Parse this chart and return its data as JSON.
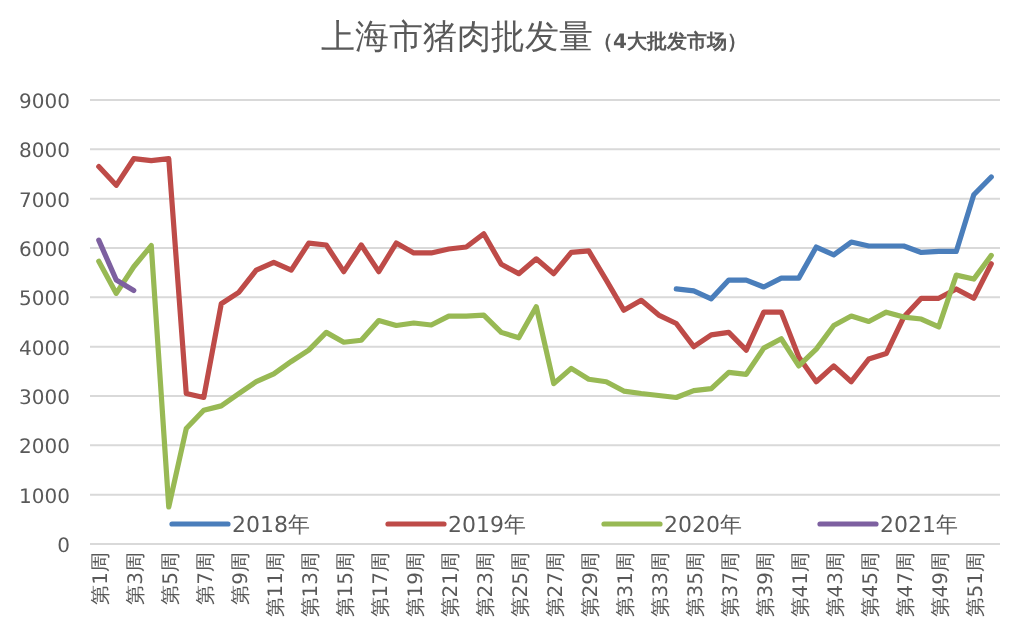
{
  "chart_data": {
    "type": "line",
    "title": "上海市猪肉批发量",
    "subtitle": "（4大批发市场）",
    "categories": [
      "第1周",
      null,
      "第3周",
      null,
      "第5周",
      null,
      "第7周",
      null,
      "第9周",
      null,
      "第11周",
      null,
      "第13周",
      null,
      "第15周",
      null,
      "第17周",
      null,
      "第19周",
      null,
      "第21周",
      null,
      "第23周",
      null,
      "第25周",
      null,
      "第27周",
      null,
      "第29周",
      null,
      "第31周",
      null,
      "第33周",
      null,
      "第35周",
      null,
      "第37周",
      null,
      "第39周",
      null,
      "第41周",
      null,
      "第43周",
      null,
      "第45周",
      null,
      "第47周",
      null,
      "第49周",
      null,
      "第51周",
      null
    ],
    "series": [
      {
        "name": "2018年",
        "color": "#4a7ebb",
        "values": [
          null,
          null,
          null,
          null,
          null,
          null,
          null,
          null,
          null,
          null,
          null,
          null,
          null,
          null,
          null,
          null,
          null,
          null,
          null,
          null,
          null,
          null,
          null,
          null,
          null,
          null,
          null,
          null,
          null,
          null,
          null,
          null,
          null,
          5170,
          5130,
          4970,
          5350,
          5350,
          5210,
          5390,
          5390,
          6020,
          5860,
          6120,
          6040,
          6040,
          6040,
          5910,
          5930,
          5930,
          7080,
          7440
        ]
      },
      {
        "name": "2019年",
        "color": "#be4b48",
        "values": [
          7650,
          7270,
          7810,
          7770,
          7810,
          3050,
          2970,
          4870,
          5100,
          5550,
          5710,
          5550,
          6100,
          6060,
          5520,
          6060,
          5520,
          6100,
          5900,
          5900,
          5980,
          6020,
          6290,
          5670,
          5480,
          5780,
          5480,
          5910,
          5940,
          5350,
          4740,
          4940,
          4640,
          4470,
          4000,
          4240,
          4290,
          3930,
          4700,
          4700,
          3790,
          3290,
          3610,
          3290,
          3750,
          3860,
          4600,
          4980,
          4980,
          5170,
          4980,
          5680
        ]
      },
      {
        "name": "2020年",
        "color": "#98b954",
        "values": [
          5730,
          5080,
          5620,
          6050,
          750,
          2340,
          2710,
          2800,
          3050,
          3290,
          3450,
          3700,
          3930,
          4290,
          4090,
          4130,
          4530,
          4430,
          4480,
          4440,
          4620,
          4620,
          4640,
          4290,
          4180,
          4810,
          3250,
          3560,
          3340,
          3290,
          3100,
          3050,
          3010,
          2970,
          3110,
          3150,
          3480,
          3440,
          3970,
          4160,
          3610,
          3950,
          4430,
          4620,
          4510,
          4700,
          4600,
          4560,
          4400,
          5450,
          5370,
          5850
        ]
      },
      {
        "name": "2021年",
        "color": "#7d60a0",
        "values": [
          6160,
          5350,
          5140,
          null,
          null,
          null,
          null,
          null,
          null,
          null,
          null,
          null,
          null,
          null,
          null,
          null,
          null,
          null,
          null,
          null,
          null,
          null,
          null,
          null,
          null,
          null,
          null,
          null,
          null,
          null,
          null,
          null,
          null,
          null,
          null,
          null,
          null,
          null,
          null,
          null,
          null,
          null,
          null,
          null,
          null,
          null,
          null,
          null,
          null,
          null,
          null,
          null
        ]
      }
    ],
    "ylim": [
      0,
      9000
    ],
    "yticks": [
      0,
      1000,
      2000,
      3000,
      4000,
      5000,
      6000,
      7000,
      8000,
      9000
    ],
    "grid": "y",
    "legend": "bottom",
    "marker": "none",
    "line_style": "solid"
  }
}
